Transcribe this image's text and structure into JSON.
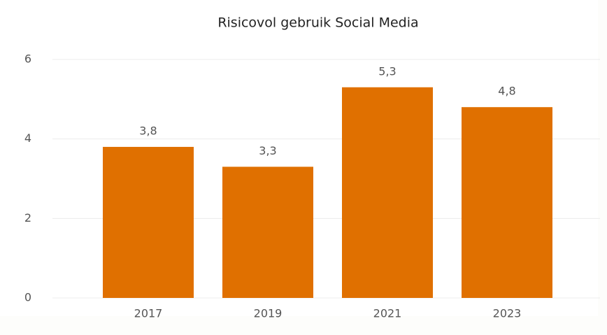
{
  "chart_data": {
    "type": "bar",
    "title": "Risicovol gebruik Social Media",
    "categories": [
      "2017",
      "2019",
      "2021",
      "2023"
    ],
    "values": [
      3.8,
      3.3,
      5.3,
      4.8
    ],
    "value_labels": [
      "3,8",
      "3,3",
      "5,3",
      "4,8"
    ],
    "color": "#e07000",
    "ylim": [
      0,
      6
    ],
    "yticks": [
      0,
      2,
      4,
      6
    ],
    "grid": true
  }
}
